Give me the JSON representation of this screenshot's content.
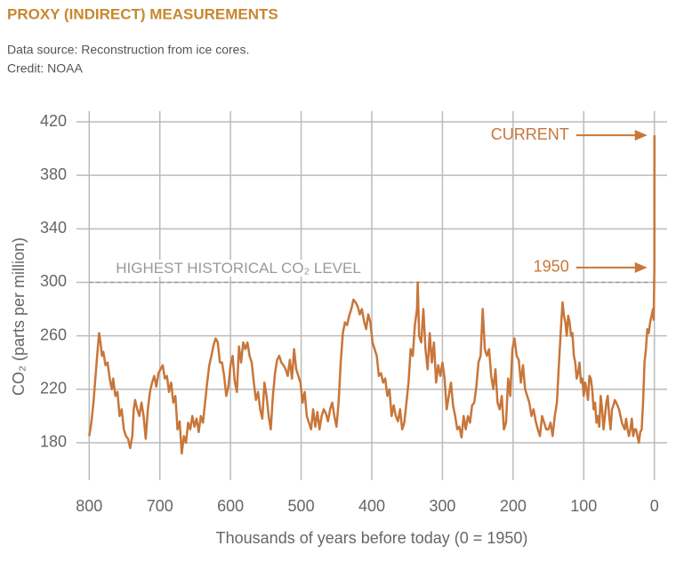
{
  "chart_data": {
    "type": "line",
    "title": "PROXY (INDIRECT) MEASUREMENTS",
    "subtitle": [
      "Data source: Reconstruction from ice cores.",
      "Credit: NOAA"
    ],
    "x_label": "Thousands of years before today (0 = 1950)",
    "y_label": "CO₂ (parts per million)",
    "xlim": [
      818,
      -18
    ],
    "ylim": [
      152,
      428
    ],
    "xticks": [
      800,
      700,
      600,
      500,
      400,
      300,
      200,
      100,
      0
    ],
    "yticks": [
      420,
      380,
      340,
      300,
      260,
      220,
      180
    ],
    "grid": true,
    "reference_line": {
      "value": 300,
      "label": "HIGHEST HISTORICAL CO₂ LEVEL",
      "color": "#999999"
    },
    "annotations": [
      {
        "text": "CURRENT",
        "x": -0.07,
        "y": 410
      },
      {
        "text": "1950",
        "x": 0,
        "y": 311
      }
    ],
    "x": [
      800,
      797,
      794,
      791,
      788,
      786,
      784,
      782,
      780,
      777,
      774,
      771,
      768,
      766,
      763,
      760,
      757,
      754,
      751,
      748,
      745,
      742,
      739,
      737,
      735,
      732,
      729,
      726,
      723,
      720,
      717,
      714,
      711,
      708,
      705,
      702,
      699,
      696,
      693,
      690,
      687,
      684,
      681,
      678,
      675,
      672,
      669,
      666,
      663,
      660,
      657,
      654,
      651,
      648,
      645,
      642,
      639,
      636,
      633,
      630,
      627,
      624,
      621,
      618,
      615,
      612,
      609,
      606,
      603,
      600,
      597,
      594,
      591,
      588,
      585,
      582,
      579,
      576,
      573,
      570,
      567,
      564,
      561,
      558,
      555,
      552,
      549,
      546,
      543,
      540,
      537,
      534,
      531,
      528,
      525,
      522,
      519,
      516,
      513,
      510,
      507,
      504,
      501,
      498,
      495,
      492,
      489,
      486,
      483,
      480,
      477,
      474,
      471,
      468,
      465,
      462,
      459,
      456,
      453,
      450,
      447,
      444,
      441,
      438,
      435,
      432,
      429,
      426,
      423,
      420,
      417,
      414,
      411,
      408,
      405,
      402,
      399,
      396,
      393,
      390,
      387,
      384,
      381,
      378,
      375,
      372,
      369,
      366,
      363,
      360,
      357,
      354,
      351,
      348,
      345,
      342,
      339,
      336,
      335,
      333,
      330,
      327,
      324,
      321,
      318,
      315,
      312,
      309,
      306,
      303,
      300,
      297,
      294,
      291,
      288,
      285,
      282,
      279,
      276,
      273,
      270,
      267,
      264,
      261,
      258,
      255,
      252,
      249,
      246,
      243,
      240,
      237,
      234,
      231,
      228,
      225,
      222,
      219,
      216,
      213,
      210,
      207,
      204,
      201,
      198,
      195,
      192,
      189,
      186,
      183,
      180,
      177,
      174,
      171,
      168,
      165,
      162,
      159,
      156,
      153,
      150,
      147,
      144,
      141,
      138,
      135,
      132,
      130,
      128,
      126,
      124,
      122,
      120,
      118,
      116,
      114,
      112,
      110,
      108,
      106,
      104,
      102,
      100,
      98,
      96,
      94,
      92,
      90,
      88,
      86,
      84,
      82,
      80,
      78,
      76,
      74,
      72,
      70,
      68,
      66,
      64,
      62,
      60,
      58,
      56,
      54,
      50,
      46,
      42,
      40,
      38,
      36,
      34,
      32,
      30,
      28,
      26,
      24,
      22,
      20,
      18,
      16,
      14,
      12,
      10,
      8,
      6,
      4,
      2,
      1,
      0,
      -0.07
    ],
    "series": [
      {
        "color": "#c8763a",
        "values": [
          185,
          195,
          210,
          230,
          250,
          262,
          255,
          245,
          248,
          238,
          240,
          228,
          220,
          228,
          215,
          218,
          200,
          205,
          190,
          185,
          183,
          176,
          185,
          205,
          212,
          205,
          200,
          210,
          200,
          183,
          205,
          218,
          225,
          230,
          222,
          232,
          235,
          238,
          228,
          230,
          218,
          225,
          210,
          215,
          190,
          196,
          172,
          185,
          180,
          195,
          190,
          200,
          192,
          198,
          188,
          200,
          195,
          210,
          225,
          238,
          245,
          253,
          258,
          255,
          240,
          240,
          230,
          215,
          222,
          238,
          245,
          226,
          218,
          252,
          240,
          255,
          250,
          255,
          245,
          240,
          225,
          212,
          218,
          205,
          198,
          225,
          215,
          200,
          190,
          215,
          232,
          242,
          245,
          240,
          238,
          235,
          230,
          242,
          228,
          250,
          235,
          230,
          225,
          210,
          218,
          200,
          195,
          190,
          205,
          192,
          203,
          190,
          200,
          205,
          202,
          196,
          205,
          210,
          200,
          192,
          210,
          240,
          262,
          270,
          268,
          275,
          280,
          287,
          285,
          282,
          276,
          280,
          271,
          265,
          276,
          270,
          255,
          250,
          245,
          230,
          232,
          225,
          228,
          215,
          220,
          200,
          208,
          200,
          196,
          205,
          190,
          195,
          210,
          225,
          250,
          245,
          268,
          280,
          300,
          260,
          255,
          280,
          250,
          235,
          262,
          240,
          255,
          225,
          238,
          230,
          240,
          228,
          205,
          215,
          225,
          208,
          200,
          190,
          192,
          184,
          200,
          190,
          200,
          195,
          208,
          210,
          222,
          240,
          245,
          280,
          250,
          245,
          250,
          230,
          220,
          235,
          210,
          205,
          215,
          190,
          195,
          228,
          215,
          250,
          258,
          245,
          242,
          225,
          238,
          220,
          215,
          210,
          200,
          205,
          196,
          190,
          185,
          200,
          195,
          190,
          190,
          195,
          185,
          200,
          210,
          240,
          268,
          285,
          275,
          270,
          260,
          275,
          270,
          260,
          262,
          245,
          240,
          228,
          232,
          240,
          225,
          228,
          215,
          225,
          220,
          212,
          230,
          228,
          220,
          205,
          210,
          195,
          200,
          192,
          215,
          205,
          190,
          200,
          210,
          215,
          200,
          190,
          205,
          208,
          212,
          210,
          205,
          195,
          190,
          198,
          190,
          185,
          190,
          198,
          185,
          190,
          190,
          185,
          180,
          188,
          190,
          210,
          240,
          250,
          265,
          262,
          270,
          275,
          280,
          272,
          311,
          410
        ]
      }
    ],
    "title_color": "#c8872e",
    "annotation_color": "#c8763a"
  }
}
